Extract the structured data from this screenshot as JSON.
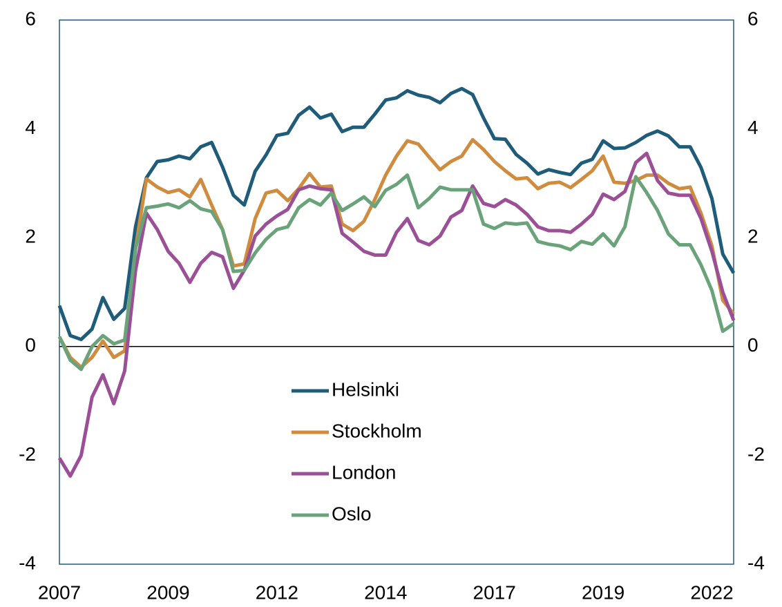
{
  "chart_data": {
    "type": "line",
    "categories": [
      "2007",
      null,
      null,
      null,
      null,
      null,
      null,
      null,
      null,
      null,
      "2009",
      null,
      null,
      null,
      null,
      null,
      null,
      null,
      null,
      null,
      "2012",
      null,
      null,
      null,
      null,
      null,
      null,
      null,
      null,
      null,
      "2014",
      null,
      null,
      null,
      null,
      null,
      null,
      null,
      null,
      null,
      "2017",
      null,
      null,
      null,
      null,
      null,
      null,
      null,
      null,
      null,
      "2019",
      null,
      null,
      null,
      null,
      null,
      null,
      null,
      null,
      null,
      "2022",
      null,
      null
    ],
    "series": [
      {
        "name": "Helsinki",
        "color": "#1f5c7a",
        "values": [
          0.75,
          0.2,
          0.13,
          0.32,
          0.9,
          0.5,
          0.7,
          2.2,
          3.1,
          3.4,
          3.43,
          3.5,
          3.45,
          3.67,
          3.75,
          3.3,
          2.78,
          2.6,
          3.22,
          3.52,
          3.88,
          3.92,
          4.25,
          4.4,
          4.2,
          4.27,
          3.95,
          4.03,
          4.03,
          4.27,
          4.53,
          4.57,
          4.7,
          4.62,
          4.58,
          4.48,
          4.65,
          4.74,
          4.63,
          4.2,
          3.82,
          3.81,
          3.53,
          3.37,
          3.17,
          3.25,
          3.2,
          3.16,
          3.37,
          3.44,
          3.78,
          3.64,
          3.65,
          3.75,
          3.88,
          3.96,
          3.87,
          3.67,
          3.67,
          3.29,
          2.72,
          1.7,
          1.35
        ]
      },
      {
        "name": "Stockholm",
        "color": "#d08c3e",
        "values": [
          0.18,
          -0.2,
          -0.38,
          -0.2,
          0.1,
          -0.2,
          -0.08,
          1.8,
          3.08,
          2.93,
          2.83,
          2.88,
          2.75,
          3.07,
          2.6,
          2.15,
          1.48,
          1.52,
          2.35,
          2.82,
          2.87,
          2.68,
          2.9,
          3.18,
          2.93,
          2.95,
          2.25,
          2.13,
          2.3,
          2.7,
          3.15,
          3.5,
          3.78,
          3.72,
          3.48,
          3.25,
          3.4,
          3.5,
          3.8,
          3.62,
          3.4,
          3.23,
          3.08,
          3.1,
          2.9,
          3.0,
          3.02,
          2.92,
          3.07,
          3.23,
          3.5,
          3.02,
          3.0,
          3.05,
          3.15,
          3.15,
          3.0,
          2.9,
          2.93,
          2.45,
          1.85,
          0.85,
          0.6
        ]
      },
      {
        "name": "London",
        "color": "#9b4f96",
        "values": [
          -2.05,
          -2.38,
          -2.0,
          -0.93,
          -0.52,
          -1.05,
          -0.45,
          1.4,
          2.45,
          2.15,
          1.75,
          1.53,
          1.18,
          1.53,
          1.73,
          1.65,
          1.07,
          1.4,
          2.03,
          2.25,
          2.4,
          2.52,
          2.88,
          2.95,
          2.9,
          2.88,
          2.08,
          1.92,
          1.75,
          1.68,
          1.68,
          2.1,
          2.35,
          1.95,
          1.87,
          2.03,
          2.38,
          2.5,
          2.95,
          2.63,
          2.57,
          2.7,
          2.6,
          2.43,
          2.2,
          2.13,
          2.13,
          2.1,
          2.25,
          2.43,
          2.8,
          2.7,
          2.85,
          3.38,
          3.55,
          3.05,
          2.82,
          2.78,
          2.78,
          2.35,
          1.75,
          1.0,
          0.48
        ]
      },
      {
        "name": "Oslo",
        "color": "#6aa37a",
        "values": [
          0.18,
          -0.25,
          -0.42,
          0.0,
          0.2,
          0.05,
          0.12,
          1.8,
          2.55,
          2.58,
          2.62,
          2.55,
          2.68,
          2.53,
          2.48,
          2.15,
          1.38,
          1.4,
          1.72,
          1.97,
          2.15,
          2.2,
          2.55,
          2.7,
          2.6,
          2.82,
          2.5,
          2.62,
          2.75,
          2.57,
          2.87,
          2.98,
          3.15,
          2.55,
          2.72,
          2.93,
          2.88,
          2.88,
          2.88,
          2.25,
          2.17,
          2.27,
          2.25,
          2.27,
          1.93,
          1.88,
          1.85,
          1.78,
          1.93,
          1.88,
          2.07,
          1.85,
          2.2,
          3.12,
          2.83,
          2.5,
          2.07,
          1.87,
          1.87,
          1.5,
          1.03,
          0.28,
          0.42
        ]
      }
    ],
    "ylim": [
      -4,
      6
    ],
    "yticks": [
      -4,
      -2,
      0,
      2,
      4,
      6
    ],
    "y2lim": [
      -4,
      6
    ],
    "y2ticks": [
      -4,
      -2,
      0,
      2,
      4,
      6
    ],
    "grid": false,
    "zero_line": true,
    "legend": "center"
  }
}
